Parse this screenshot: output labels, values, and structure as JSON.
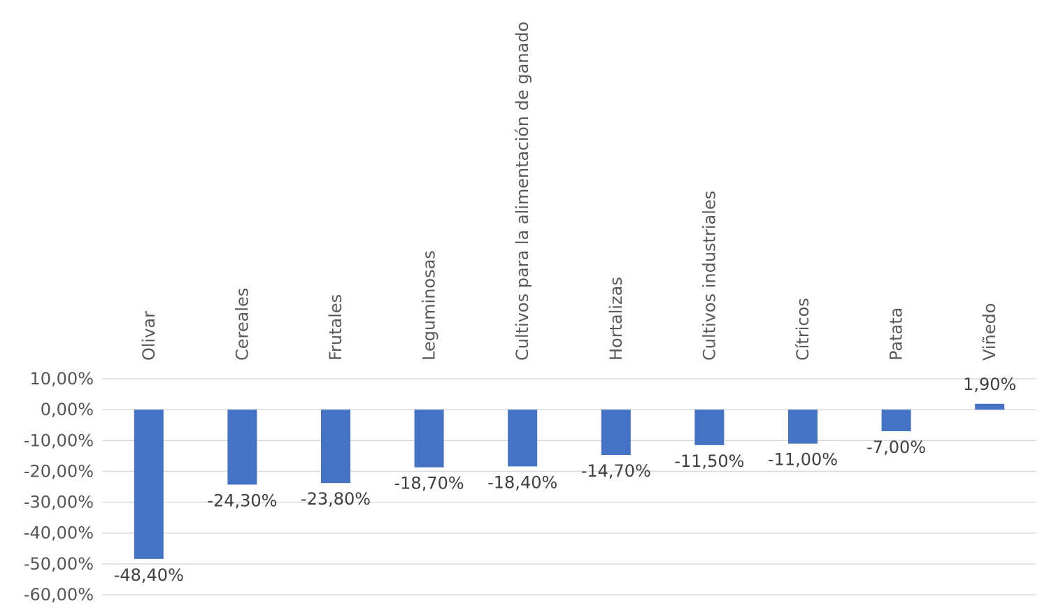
{
  "chart_data": {
    "type": "bar",
    "categories": [
      "Olivar",
      "Cereales",
      "Frutales",
      "Leguminosas",
      "Cultivos para la alimentación de ganado",
      "Hortalizas",
      "Cultivos industriales",
      "Cítricos",
      "Patata",
      "Viñedo"
    ],
    "values": [
      -48.4,
      -24.3,
      -23.8,
      -18.7,
      -18.4,
      -14.7,
      -11.5,
      -11.0,
      -7.0,
      1.9
    ],
    "value_labels": [
      "-48,40%",
      "-24,30%",
      "-23,80%",
      "-18,70%",
      "-18,40%",
      "-14,70%",
      "-11,50%",
      "-11,00%",
      "-7,00%",
      "1,90%"
    ],
    "y_ticks": [
      10,
      0,
      -10,
      -20,
      -30,
      -40,
      -50,
      -60
    ],
    "y_tick_labels": [
      "10,00%",
      "0,00%",
      "-10,00%",
      "-20,00%",
      "-30,00%",
      "-40,00%",
      "-50,00%",
      "-60,00%"
    ],
    "ylim": [
      -60,
      10
    ],
    "grid": true,
    "legend": "none",
    "category_label_position": "top, rotated vertical",
    "bar_color": "#4472c4",
    "title": "",
    "xlabel": "",
    "ylabel": ""
  }
}
